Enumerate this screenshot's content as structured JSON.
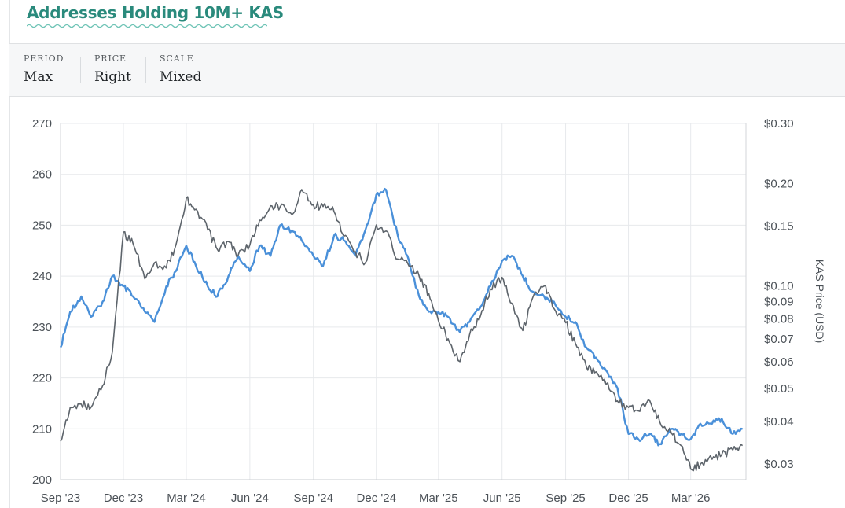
{
  "header": {
    "title": "Addresses Holding 10M+ KAS"
  },
  "controls": [
    {
      "label": "PERIOD",
      "value": "Max"
    },
    {
      "label": "PRICE",
      "value": "Right"
    },
    {
      "label": "SCALE",
      "value": "Mixed"
    }
  ],
  "colors": {
    "title": "#2a8a7c",
    "addresses": "#4a90d9",
    "price": "#5d646b",
    "grid": "#e7e9ec",
    "tick_text": "#4b5157"
  },
  "chart_data": {
    "type": "line",
    "title": "Addresses Holding 10M+ KAS",
    "xlabel": "",
    "ylabel": "",
    "y2label": "KAS Price (USD)",
    "x_ticks": [
      "Sep '23",
      "Dec '23",
      "Mar '24",
      "Jun '24",
      "Sep '24",
      "Dec '24",
      "Mar '25",
      "Jun '25",
      "Sep '25",
      "Dec '25",
      "Mar '26"
    ],
    "y_ticks": [
      200,
      210,
      220,
      230,
      240,
      250,
      260,
      270
    ],
    "ylim": [
      200,
      270
    ],
    "y2_scale": "log",
    "y2lim": [
      0.027,
      0.3
    ],
    "y2_ticks": [
      {
        "value": 0.3,
        "label": "$0.30"
      },
      {
        "value": 0.2,
        "label": "$0.20"
      },
      {
        "value": 0.15,
        "label": "$0.15"
      },
      {
        "value": 0.1,
        "label": "$0.10"
      },
      {
        "value": 0.09,
        "label": "$0.09"
      },
      {
        "value": 0.08,
        "label": "$0.08"
      },
      {
        "value": 0.07,
        "label": "$0.07"
      },
      {
        "value": 0.06,
        "label": "$0.06"
      },
      {
        "value": 0.05,
        "label": "$0.05"
      },
      {
        "value": 0.04,
        "label": "$0.04"
      },
      {
        "value": 0.03,
        "label": "$0.03"
      }
    ],
    "grid": true,
    "x": [
      "2023-09-01",
      "2023-09-15",
      "2023-10-01",
      "2023-10-15",
      "2023-11-01",
      "2023-11-15",
      "2023-12-01",
      "2023-12-15",
      "2024-01-01",
      "2024-01-15",
      "2024-02-01",
      "2024-02-15",
      "2024-03-01",
      "2024-03-15",
      "2024-04-01",
      "2024-04-15",
      "2024-05-01",
      "2024-05-15",
      "2024-06-01",
      "2024-06-15",
      "2024-07-01",
      "2024-07-15",
      "2024-08-01",
      "2024-08-15",
      "2024-09-01",
      "2024-09-15",
      "2024-10-01",
      "2024-10-15",
      "2024-11-01",
      "2024-11-15",
      "2024-12-01",
      "2024-12-15",
      "2025-01-01",
      "2025-01-15",
      "2025-02-01",
      "2025-02-15",
      "2025-03-01",
      "2025-03-15",
      "2025-04-01",
      "2025-04-15",
      "2025-05-01",
      "2025-05-15",
      "2025-06-01",
      "2025-06-15",
      "2025-07-01",
      "2025-07-15",
      "2025-08-01",
      "2025-08-15",
      "2025-09-01",
      "2025-09-15",
      "2025-10-01",
      "2025-10-15",
      "2025-11-01",
      "2025-11-15",
      "2025-12-01",
      "2025-12-15",
      "2026-01-01",
      "2026-01-15",
      "2026-02-01",
      "2026-02-15",
      "2026-03-01",
      "2026-03-15",
      "2026-04-01",
      "2026-04-15",
      "2026-05-01",
      "2026-05-15"
    ],
    "series": [
      {
        "axis": "left",
        "color": "#4a90d9",
        "values": [
          226,
          233,
          236,
          232,
          235,
          240,
          238,
          236,
          233,
          231,
          238,
          241,
          246,
          242,
          238,
          236,
          240,
          244,
          241,
          246,
          244,
          250,
          249,
          247,
          244,
          242,
          248,
          247,
          244,
          249,
          256,
          257,
          248,
          244,
          236,
          233,
          233,
          232,
          229,
          231,
          234,
          238,
          243,
          244,
          240,
          237,
          236,
          235,
          232,
          231,
          226,
          224,
          221,
          218,
          209,
          208,
          209,
          207,
          210,
          209,
          208,
          211,
          211,
          212,
          209,
          210
        ]
      },
      {
        "axis": "right",
        "color": "#5d646b",
        "values": [
          0.035,
          0.044,
          0.045,
          0.044,
          0.051,
          0.064,
          0.144,
          0.133,
          0.105,
          0.117,
          0.113,
          0.132,
          0.181,
          0.168,
          0.146,
          0.128,
          0.135,
          0.123,
          0.132,
          0.156,
          0.172,
          0.171,
          0.162,
          0.192,
          0.173,
          0.171,
          0.165,
          0.14,
          0.126,
          0.117,
          0.151,
          0.145,
          0.12,
          0.117,
          0.107,
          0.095,
          0.079,
          0.07,
          0.06,
          0.072,
          0.082,
          0.098,
          0.106,
          0.089,
          0.074,
          0.092,
          0.1,
          0.086,
          0.078,
          0.068,
          0.058,
          0.056,
          0.052,
          0.046,
          0.044,
          0.043,
          0.046,
          0.04,
          0.037,
          0.034,
          0.029,
          0.03,
          0.031,
          0.032,
          0.033,
          0.034
        ]
      }
    ]
  }
}
